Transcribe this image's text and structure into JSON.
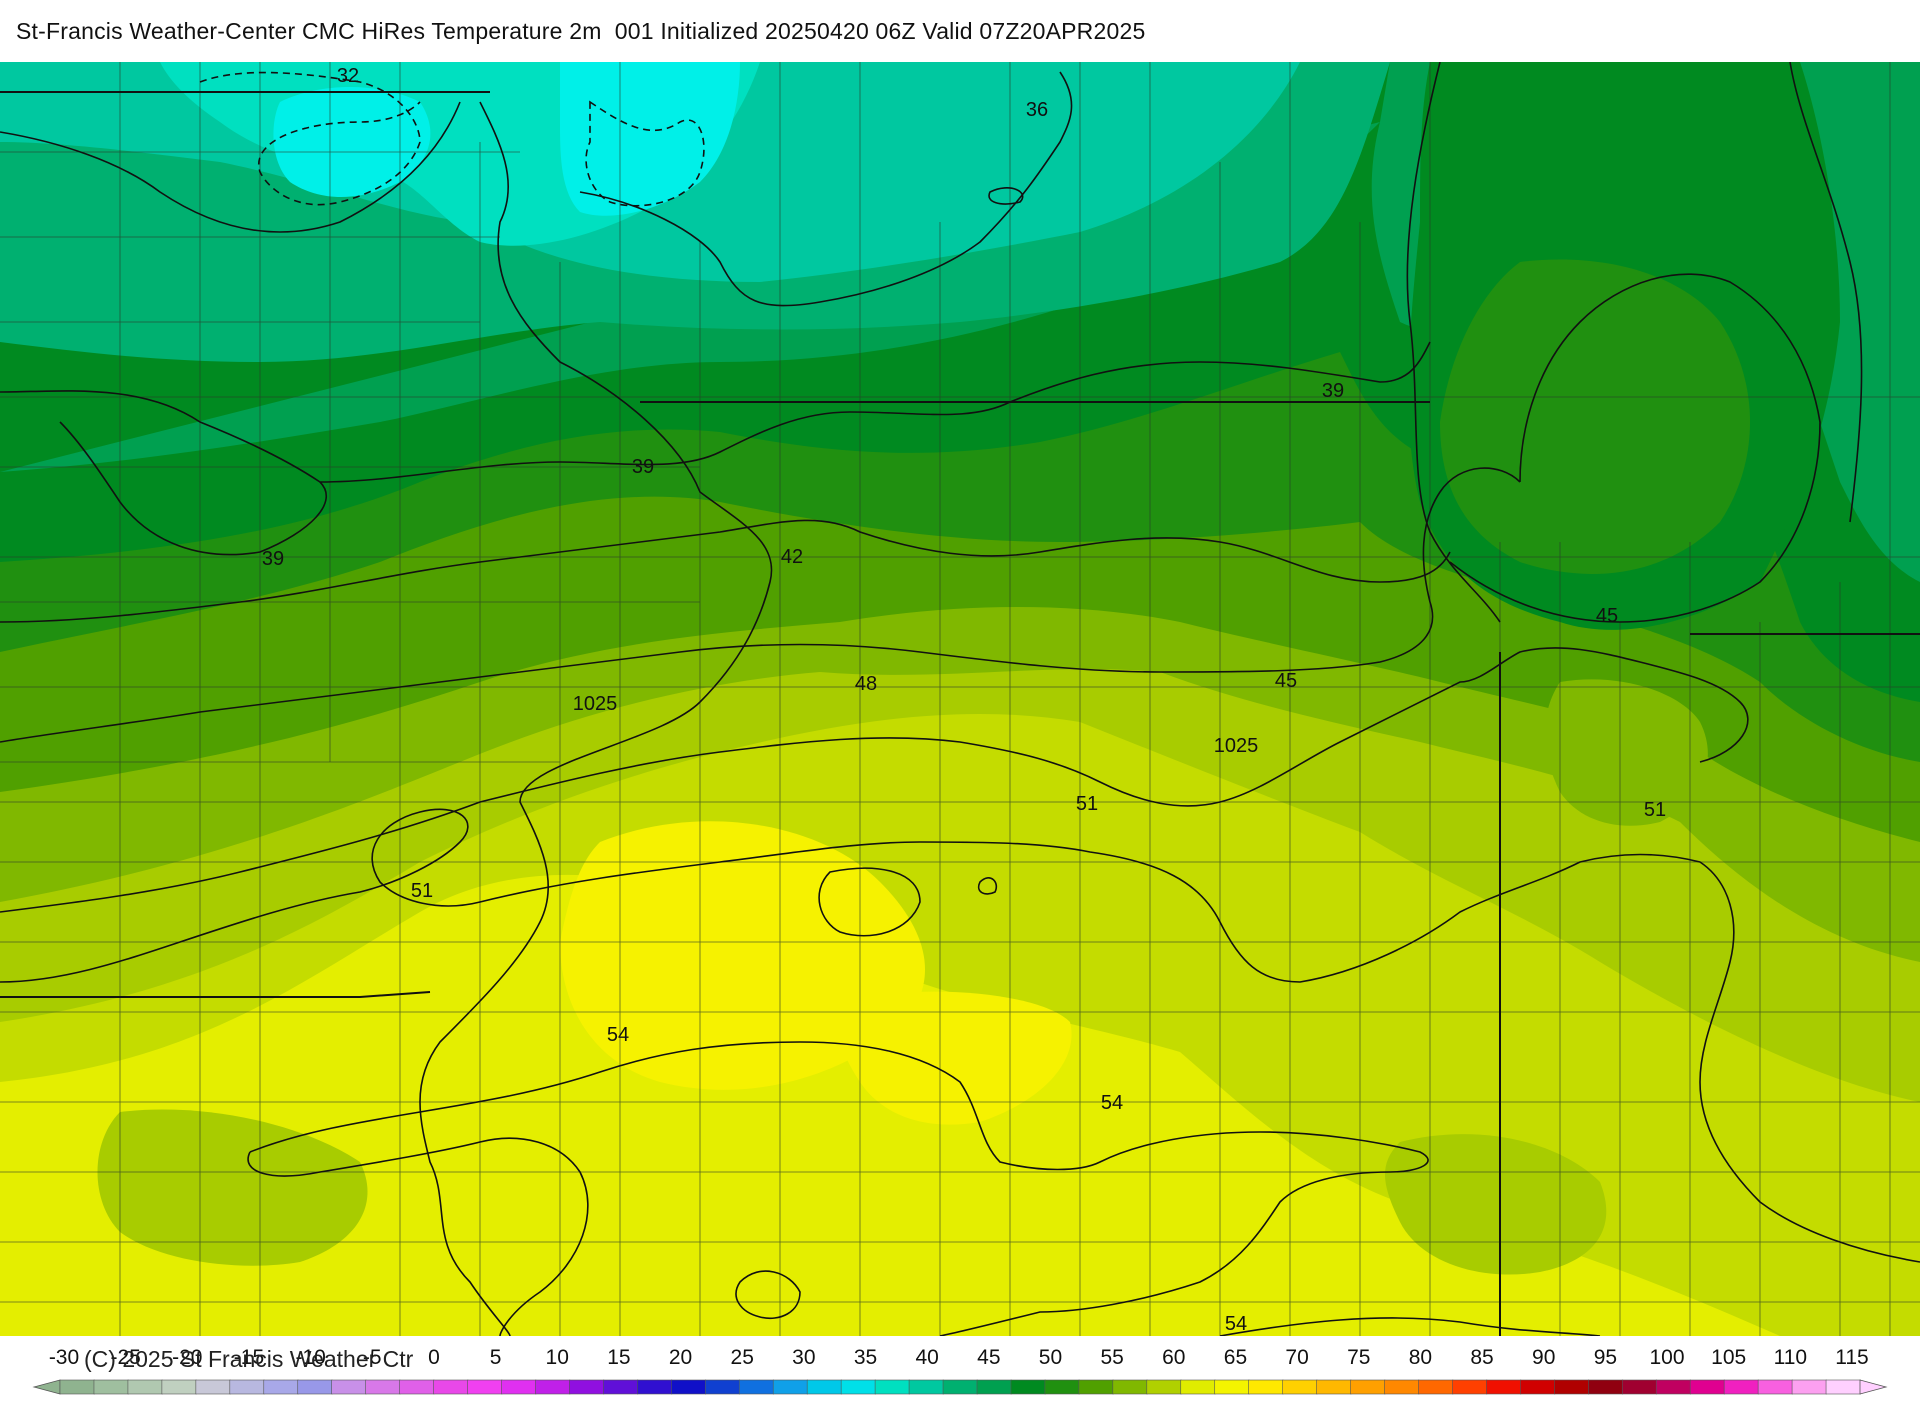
{
  "header": {
    "title": "St-Francis Weather-Center CMC HiRes Temperature 2m  001 Initialized 20250420 06Z Valid 07Z20APR2025"
  },
  "map": {
    "isotherm_labels": [
      "32",
      "36",
      "39",
      "39",
      "39",
      "42",
      "45",
      "45",
      "48",
      "51",
      "51",
      "51",
      "54",
      "54",
      "54"
    ],
    "isobar_labels": [
      "1025",
      "1025"
    ]
  },
  "legend": {
    "ticks": [
      "-30",
      "-25",
      "-20",
      "-15",
      "-10",
      "-5",
      "0",
      "5",
      "10",
      "15",
      "20",
      "25",
      "30",
      "35",
      "40",
      "45",
      "50",
      "55",
      "60",
      "65",
      "70",
      "75",
      "80",
      "85",
      "90",
      "95",
      "100",
      "105",
      "110",
      "115"
    ],
    "colors": [
      "#8fb38f",
      "#9fbf9f",
      "#b0c8b0",
      "#c0d0c0",
      "#c8c8d8",
      "#b8b8e0",
      "#a8a8e8",
      "#9898e8",
      "#c890e8",
      "#d878e8",
      "#e060e8",
      "#e848e8",
      "#f040f0",
      "#e030f0",
      "#c020e8",
      "#9010e0",
      "#6010d8",
      "#3010d0",
      "#1010c8",
      "#1040d0",
      "#1070e0",
      "#10a0e8",
      "#00c8e8",
      "#00e0e8",
      "#00e0c0",
      "#00c8a0",
      "#00b070",
      "#00a050",
      "#008a20",
      "#209010",
      "#50a000",
      "#80b800",
      "#b0d000",
      "#e0ec00",
      "#f4f400",
      "#ffe800",
      "#ffd000",
      "#ffb800",
      "#ffa000",
      "#ff8800",
      "#ff6800",
      "#ff4000",
      "#f01000",
      "#d00000",
      "#b00000",
      "#900010",
      "#a00030",
      "#c00060",
      "#e00090",
      "#f020c0",
      "#f860e0",
      "#fca0f0",
      "#ffd0ff"
    ],
    "copyright": "(C) 2025 St Francis Weather Ctr"
  }
}
